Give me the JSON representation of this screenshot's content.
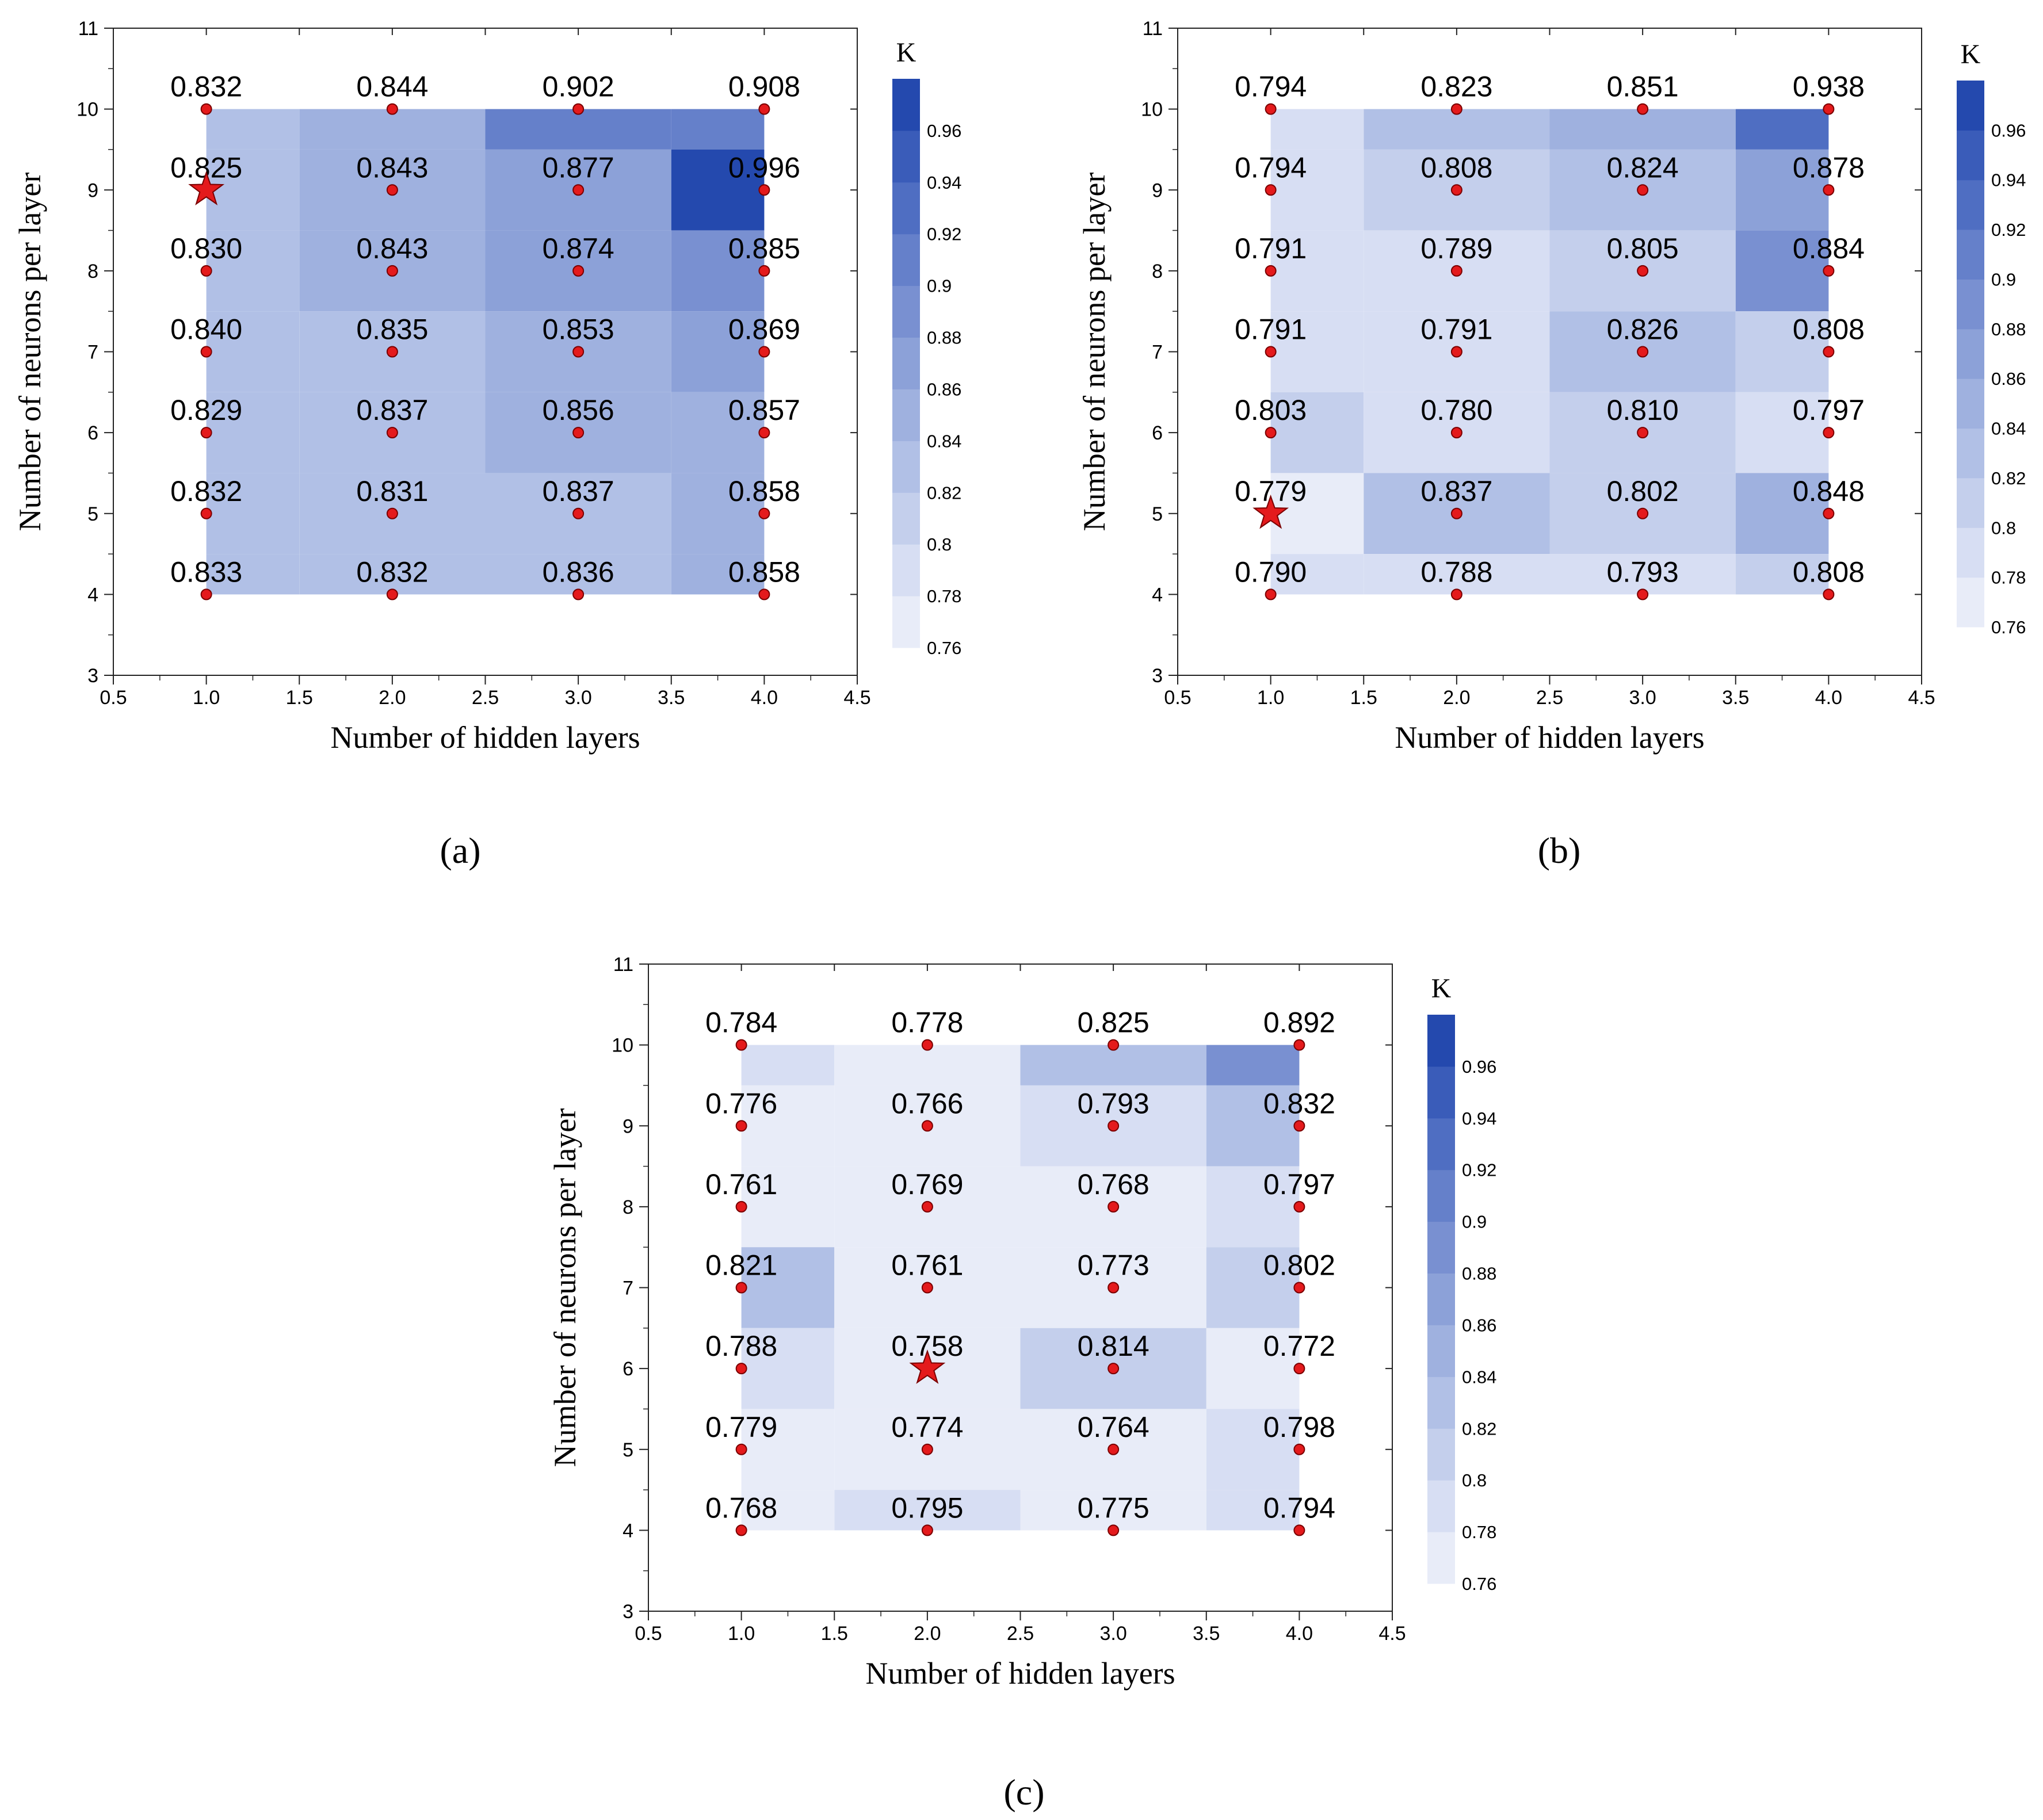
{
  "chart_data": [
    {
      "type": "heatmap",
      "panel_label": "(a)",
      "xlabel": "Number of hidden layers",
      "ylabel": "Number of neurons per layer",
      "xlim": [
        0.5,
        4.5
      ],
      "ylim": [
        3,
        11
      ],
      "xticks": [
        "0.5",
        "1.0",
        "1.5",
        "2.0",
        "2.5",
        "3.0",
        "3.5",
        "4.0",
        "4.5"
      ],
      "yticks": [
        "3",
        "4",
        "5",
        "6",
        "7",
        "8",
        "9",
        "10",
        "11"
      ],
      "x": [
        1,
        2,
        3,
        4
      ],
      "y": [
        10,
        9,
        8,
        7,
        6,
        5,
        4
      ],
      "values": [
        [
          "0.832",
          "0.844",
          "0.902",
          "0.908"
        ],
        [
          "0.825",
          "0.843",
          "0.877",
          "0.996"
        ],
        [
          "0.830",
          "0.843",
          "0.874",
          "0.885"
        ],
        [
          "0.840",
          "0.835",
          "0.853",
          "0.869"
        ],
        [
          "0.829",
          "0.837",
          "0.856",
          "0.857"
        ],
        [
          "0.832",
          "0.831",
          "0.837",
          "0.858"
        ],
        [
          "0.833",
          "0.832",
          "0.836",
          "0.858"
        ]
      ],
      "best": {
        "x": 1,
        "y": 9
      },
      "colorbar": {
        "title": "K",
        "min": 0.76,
        "max": 0.98,
        "ticks": [
          "0.96",
          "0.94",
          "0.92",
          "0.9",
          "0.88",
          "0.86",
          "0.84",
          "0.82",
          "0.8",
          "0.78",
          "0.76"
        ],
        "colors": [
          "#e8ecf8",
          "#d7def3",
          "#c4cfec",
          "#b1c0e6",
          "#9fb1df",
          "#8ca1d8",
          "#7990d1",
          "#6580ca",
          "#4f6ec2",
          "#3a5cb9",
          "#2449ae"
        ]
      }
    },
    {
      "type": "heatmap",
      "panel_label": "(b)",
      "xlabel": "Number of hidden layers",
      "ylabel": "Number of neurons per layer",
      "xlim": [
        0.5,
        4.5
      ],
      "ylim": [
        3,
        11
      ],
      "xticks": [
        "0.5",
        "1.0",
        "1.5",
        "2.0",
        "2.5",
        "3.0",
        "3.5",
        "4.0",
        "4.5"
      ],
      "yticks": [
        "3",
        "4",
        "5",
        "6",
        "7",
        "8",
        "9",
        "10",
        "11"
      ],
      "x": [
        1,
        2,
        3,
        4
      ],
      "y": [
        10,
        9,
        8,
        7,
        6,
        5,
        4
      ],
      "values": [
        [
          "0.794",
          "0.823",
          "0.851",
          "0.938"
        ],
        [
          "0.794",
          "0.808",
          "0.824",
          "0.878"
        ],
        [
          "0.791",
          "0.789",
          "0.805",
          "0.884"
        ],
        [
          "0.791",
          "0.791",
          "0.826",
          "0.808"
        ],
        [
          "0.803",
          "0.780",
          "0.810",
          "0.797"
        ],
        [
          "0.779",
          "0.837",
          "0.802",
          "0.848"
        ],
        [
          "0.790",
          "0.788",
          "0.793",
          "0.808"
        ]
      ],
      "best": {
        "x": 1,
        "y": 5
      },
      "colorbar": {
        "title": "K",
        "min": 0.76,
        "max": 0.98,
        "ticks": [
          "0.96",
          "0.94",
          "0.92",
          "0.9",
          "0.88",
          "0.86",
          "0.84",
          "0.82",
          "0.8",
          "0.78",
          "0.76"
        ],
        "colors": [
          "#e8ecf8",
          "#d7def3",
          "#c4cfec",
          "#b1c0e6",
          "#9fb1df",
          "#8ca1d8",
          "#7990d1",
          "#6580ca",
          "#4f6ec2",
          "#3a5cb9",
          "#2449ae"
        ]
      }
    },
    {
      "type": "heatmap",
      "panel_label": "(c)",
      "xlabel": "Number of hidden layers",
      "ylabel": "Number of neurons per layer",
      "xlim": [
        0.5,
        4.5
      ],
      "ylim": [
        3,
        11
      ],
      "xticks": [
        "0.5",
        "1.0",
        "1.5",
        "2.0",
        "2.5",
        "3.0",
        "3.5",
        "4.0",
        "4.5"
      ],
      "yticks": [
        "3",
        "4",
        "5",
        "6",
        "7",
        "8",
        "9",
        "10",
        "11"
      ],
      "x": [
        1,
        2,
        3,
        4
      ],
      "y": [
        10,
        9,
        8,
        7,
        6,
        5,
        4
      ],
      "values": [
        [
          "0.784",
          "0.778",
          "0.825",
          "0.892"
        ],
        [
          "0.776",
          "0.766",
          "0.793",
          "0.832"
        ],
        [
          "0.761",
          "0.769",
          "0.768",
          "0.797"
        ],
        [
          "0.821",
          "0.761",
          "0.773",
          "0.802"
        ],
        [
          "0.788",
          "0.758",
          "0.814",
          "0.772"
        ],
        [
          "0.779",
          "0.774",
          "0.764",
          "0.798"
        ],
        [
          "0.768",
          "0.795",
          "0.775",
          "0.794"
        ]
      ],
      "best": {
        "x": 2,
        "y": 6
      },
      "colorbar": {
        "title": "K",
        "min": 0.76,
        "max": 0.98,
        "ticks": [
          "0.96",
          "0.94",
          "0.92",
          "0.9",
          "0.88",
          "0.86",
          "0.84",
          "0.82",
          "0.8",
          "0.78",
          "0.76"
        ],
        "colors": [
          "#e8ecf8",
          "#d7def3",
          "#c4cfec",
          "#b1c0e6",
          "#9fb1df",
          "#8ca1d8",
          "#7990d1",
          "#6580ca",
          "#4f6ec2",
          "#3a5cb9",
          "#2449ae"
        ]
      }
    }
  ],
  "colors": {
    "marker": "#e41a1c",
    "marker_stroke": "#7a0000",
    "axis": "#000000"
  }
}
